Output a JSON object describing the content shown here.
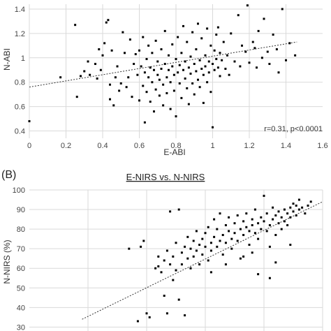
{
  "chart_data": [
    {
      "type": "scatter",
      "panel_label": "",
      "title": "",
      "xlabel": "E-ABI",
      "ylabel": "N-ABI",
      "xlim": [
        0,
        1.6
      ],
      "ylim": [
        0.34,
        1.44
      ],
      "x_ticks": [
        "0",
        "0.2",
        "0.4",
        "0.6",
        "0.8",
        "1",
        "1.2",
        "1.4",
        "1.6"
      ],
      "y_ticks": [
        "0.4",
        "0.6",
        "0.8",
        "1",
        "1.2",
        "1.4"
      ],
      "grid": true,
      "annotation": "r=0.31, p<0.0001",
      "trendline": {
        "style": "dotted",
        "x": [
          0,
          1.46
        ],
        "y": [
          0.76,
          1.13
        ]
      },
      "points": [
        [
          0.0,
          0.48
        ],
        [
          0.17,
          0.84
        ],
        [
          0.25,
          1.27
        ],
        [
          0.26,
          0.68
        ],
        [
          0.28,
          0.85
        ],
        [
          0.3,
          0.89
        ],
        [
          0.32,
          0.97
        ],
        [
          0.33,
          0.86
        ],
        [
          0.36,
          0.95
        ],
        [
          0.37,
          0.83
        ],
        [
          0.38,
          1.07
        ],
        [
          0.39,
          0.9
        ],
        [
          0.4,
          1.02
        ],
        [
          0.41,
          1.12
        ],
        [
          0.42,
          1.29
        ],
        [
          0.43,
          1.31
        ],
        [
          0.44,
          0.78
        ],
        [
          0.44,
          0.66
        ],
        [
          0.45,
          1.06
        ],
        [
          0.46,
          0.61
        ],
        [
          0.47,
          0.84
        ],
        [
          0.48,
          0.93
        ],
        [
          0.49,
          0.73
        ],
        [
          0.5,
          0.79
        ],
        [
          0.51,
          1.21
        ],
        [
          0.52,
          1.04
        ],
        [
          0.53,
          0.76
        ],
        [
          0.54,
          0.84
        ],
        [
          0.55,
          1.15
        ],
        [
          0.56,
          0.68
        ],
        [
          0.57,
          0.95
        ],
        [
          0.58,
          1.03
        ],
        [
          0.59,
          0.86
        ],
        [
          0.6,
          0.65
        ],
        [
          0.6,
          1.06
        ],
        [
          0.61,
          0.93
        ],
        [
          0.62,
          0.77
        ],
        [
          0.62,
          1.17
        ],
        [
          0.63,
          0.47
        ],
        [
          0.63,
          0.88
        ],
        [
          0.64,
          0.99
        ],
        [
          0.64,
          0.72
        ],
        [
          0.65,
          0.84
        ],
        [
          0.65,
          1.1
        ],
        [
          0.66,
          0.92
        ],
        [
          0.66,
          0.64
        ],
        [
          0.67,
          0.8
        ],
        [
          0.67,
          1.04
        ],
        [
          0.68,
          0.56
        ],
        [
          0.68,
          0.9
        ],
        [
          0.69,
          0.74
        ],
        [
          0.69,
          1.14
        ],
        [
          0.7,
          0.86
        ],
        [
          0.7,
          0.97
        ],
        [
          0.71,
          0.69
        ],
        [
          0.71,
          0.82
        ],
        [
          0.72,
          1.07
        ],
        [
          0.72,
          0.91
        ],
        [
          0.73,
          0.61
        ],
        [
          0.73,
          0.78
        ],
        [
          0.74,
          0.95
        ],
        [
          0.74,
          1.22
        ],
        [
          0.75,
          0.84
        ],
        [
          0.75,
          0.71
        ],
        [
          0.76,
          1.02
        ],
        [
          0.76,
          0.9
        ],
        [
          0.77,
          0.8
        ],
        [
          0.77,
          0.58
        ],
        [
          0.78,
          0.93
        ],
        [
          0.78,
          1.11
        ],
        [
          0.79,
          0.86
        ],
        [
          0.79,
          0.73
        ],
        [
          0.8,
          0.99
        ],
        [
          0.8,
          0.52
        ],
        [
          0.81,
          0.88
        ],
        [
          0.81,
          1.17
        ],
        [
          0.82,
          0.79
        ],
        [
          0.82,
          0.94
        ],
        [
          0.83,
          0.67
        ],
        [
          0.83,
          1.04
        ],
        [
          0.84,
          0.9
        ],
        [
          0.84,
          1.26
        ],
        [
          0.85,
          0.83
        ],
        [
          0.85,
          0.97
        ],
        [
          0.86,
          0.75
        ],
        [
          0.86,
          1.13
        ],
        [
          0.87,
          0.92
        ],
        [
          0.87,
          0.62
        ],
        [
          0.88,
          0.87
        ],
        [
          0.88,
          1.01
        ],
        [
          0.89,
          0.79
        ],
        [
          0.89,
          1.21
        ],
        [
          0.9,
          0.95
        ],
        [
          0.9,
          0.7
        ],
        [
          0.91,
          0.89
        ],
        [
          0.91,
          1.07
        ],
        [
          0.92,
          0.82
        ],
        [
          0.92,
          1.28
        ],
        [
          0.93,
          0.98
        ],
        [
          0.93,
          0.76
        ],
        [
          0.94,
          0.91
        ],
        [
          0.94,
          1.16
        ],
        [
          0.95,
          0.86
        ],
        [
          0.95,
          0.63
        ],
        [
          0.96,
          1.02
        ],
        [
          0.96,
          0.93
        ],
        [
          0.97,
          0.8
        ],
        [
          0.97,
          1.24
        ],
        [
          0.98,
          0.97
        ],
        [
          0.98,
          0.88
        ],
        [
          0.99,
          1.1
        ],
        [
          0.99,
          0.72
        ],
        [
          1.0,
          0.95
        ],
        [
          1.0,
          0.43
        ],
        [
          1.01,
          1.06
        ],
        [
          1.01,
          0.9
        ],
        [
          1.02,
          1.19
        ],
        [
          1.02,
          0.99
        ],
        [
          1.03,
          0.92
        ],
        [
          1.03,
          1.25
        ],
        [
          1.04,
          1.04
        ],
        [
          1.04,
          0.85
        ],
        [
          1.05,
          0.98
        ],
        [
          1.06,
          1.13
        ],
        [
          1.07,
          0.91
        ],
        [
          1.08,
          1.02
        ],
        [
          1.09,
          0.86
        ],
        [
          1.1,
          1.2
        ],
        [
          1.12,
          0.97
        ],
        [
          1.14,
          1.35
        ],
        [
          1.15,
          0.93
        ],
        [
          1.16,
          1.1
        ],
        [
          1.18,
          1.05
        ],
        [
          1.19,
          1.43
        ],
        [
          1.2,
          0.96
        ],
        [
          1.22,
          1.13
        ],
        [
          1.23,
          1.08
        ],
        [
          1.24,
          0.92
        ],
        [
          1.25,
          1.22
        ],
        [
          1.27,
          1.0
        ],
        [
          1.28,
          1.32
        ],
        [
          1.3,
          1.05
        ],
        [
          1.31,
          0.95
        ],
        [
          1.33,
          1.19
        ],
        [
          1.35,
          1.07
        ],
        [
          1.36,
          0.88
        ],
        [
          1.38,
          1.4
        ],
        [
          1.4,
          0.98
        ],
        [
          1.42,
          1.12
        ],
        [
          1.45,
          1.02
        ]
      ]
    },
    {
      "type": "scatter",
      "panel_label": "(B)",
      "title": "E-NIRS vs. N-NIRS",
      "xlabel": "",
      "ylabel": "N-NIRS (%)",
      "xlim": [
        0,
        100
      ],
      "ylim": [
        28,
        100
      ],
      "x_ticks": [],
      "y_ticks": [
        "30",
        "40",
        "50",
        "60",
        "70",
        "80",
        "90",
        "100"
      ],
      "grid": true,
      "annotation": "",
      "trendline": {
        "style": "dotted",
        "x": [
          18,
          100
        ],
        "y": [
          34,
          94
        ]
      },
      "points": [
        [
          34,
          70
        ],
        [
          38,
          71
        ],
        [
          39,
          74
        ],
        [
          37,
          33
        ],
        [
          40,
          37
        ],
        [
          41,
          35
        ],
        [
          43,
          60
        ],
        [
          44,
          61
        ],
        [
          44,
          66
        ],
        [
          45,
          58
        ],
        [
          46,
          64
        ],
        [
          46,
          46
        ],
        [
          47,
          69
        ],
        [
          47,
          37
        ],
        [
          48,
          62
        ],
        [
          48,
          89
        ],
        [
          49,
          66
        ],
        [
          49,
          54
        ],
        [
          50,
          73
        ],
        [
          50,
          59
        ],
        [
          51,
          90
        ],
        [
          51,
          44
        ],
        [
          52,
          68
        ],
        [
          52,
          62
        ],
        [
          53,
          71
        ],
        [
          53,
          36
        ],
        [
          54,
          65
        ],
        [
          54,
          76
        ],
        [
          55,
          60
        ],
        [
          55,
          70
        ],
        [
          56,
          74
        ],
        [
          56,
          66
        ],
        [
          57,
          69
        ],
        [
          57,
          79
        ],
        [
          58,
          72
        ],
        [
          58,
          62
        ],
        [
          59,
          75
        ],
        [
          59,
          67
        ],
        [
          60,
          78
        ],
        [
          60,
          71
        ],
        [
          61,
          64
        ],
        [
          61,
          81
        ],
        [
          62,
          73
        ],
        [
          62,
          69
        ],
        [
          63,
          85
        ],
        [
          63,
          76
        ],
        [
          64,
          71
        ],
        [
          64,
          80
        ],
        [
          65,
          74
        ],
        [
          65,
          88
        ],
        [
          66,
          77
        ],
        [
          66,
          67
        ],
        [
          67,
          82
        ],
        [
          67,
          73
        ],
        [
          68,
          79
        ],
        [
          68,
          86
        ],
        [
          69,
          75
        ],
        [
          69,
          70
        ],
        [
          70,
          83
        ],
        [
          70,
          78
        ],
        [
          71,
          87
        ],
        [
          71,
          74
        ],
        [
          72,
          80
        ],
        [
          72,
          65
        ],
        [
          73,
          84
        ],
        [
          73,
          77
        ],
        [
          74,
          81
        ],
        [
          74,
          88
        ],
        [
          75,
          79
        ],
        [
          75,
          72
        ],
        [
          76,
          85
        ],
        [
          76,
          82
        ],
        [
          77,
          78
        ],
        [
          77,
          90
        ],
        [
          78,
          83
        ],
        [
          78,
          75
        ],
        [
          79,
          86
        ],
        [
          79,
          80
        ],
        [
          80,
          97
        ],
        [
          80,
          84
        ],
        [
          81,
          79
        ],
        [
          81,
          88
        ],
        [
          82,
          82
        ],
        [
          82,
          71
        ],
        [
          83,
          85
        ],
        [
          83,
          91
        ],
        [
          84,
          87
        ],
        [
          84,
          77
        ],
        [
          85,
          83
        ],
        [
          85,
          89
        ],
        [
          86,
          86
        ],
        [
          86,
          80
        ],
        [
          87,
          90
        ],
        [
          87,
          84
        ],
        [
          88,
          88
        ],
        [
          88,
          82
        ],
        [
          89,
          91
        ],
        [
          89,
          86
        ],
        [
          90,
          89
        ],
        [
          90,
          93
        ],
        [
          91,
          87
        ],
        [
          91,
          92
        ],
        [
          92,
          90
        ],
        [
          92,
          95
        ],
        [
          93,
          91
        ],
        [
          94,
          88
        ],
        [
          95,
          92
        ],
        [
          96,
          94
        ],
        [
          78,
          57
        ],
        [
          73,
          66
        ],
        [
          67,
          62
        ],
        [
          62,
          58
        ],
        [
          84,
          63
        ],
        [
          89,
          72
        ],
        [
          82,
          55
        ],
        [
          76,
          68
        ]
      ]
    }
  ]
}
